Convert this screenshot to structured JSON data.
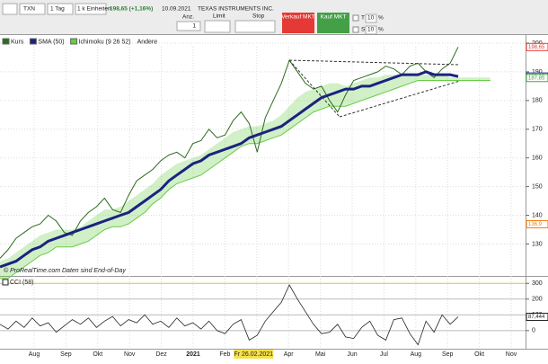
{
  "toolbar": {
    "symbol": "TXN",
    "period": "1 Tag",
    "units": "1 k Einheiten",
    "quote": "198,65 (+1,16%)",
    "date": "10.09.2021",
    "name": "TEXAS INSTRUMENTS INC.",
    "qty_label": "Anz.",
    "qty": "1",
    "limit": "Limit",
    "stop": "Stop",
    "sell": "Verkauf MKT",
    "buy": "Kauf MKT",
    "t_label": "T",
    "t_value": "10",
    "t_unit": "%",
    "s_label": "S",
    "s_value": "10",
    "s_unit": "%"
  },
  "chart_data": [
    {
      "type": "line",
      "legend_extra": "Andere",
      "copyright": "© ProRealTime.com  Daten sind End-of-Day",
      "ylim": [
        119.5,
        202.5
      ],
      "yticks": [
        130,
        140,
        150,
        160,
        170,
        180,
        190,
        200
      ],
      "grid": true,
      "month_labels": [
        "Aug",
        "Sep",
        "Okt",
        "Nov",
        "Dez",
        "2021",
        "Feb",
        null,
        "Apr",
        "Mai",
        "Jun",
        "Jul",
        "Aug",
        "Sep",
        "Okt",
        "Nov"
      ],
      "cursor_label": "Fr 26.02.2021",
      "last_values": [
        {
          "value": 198.65,
          "label": "198,65",
          "color": "#e53935"
        },
        {
          "value": 188.36,
          "label": "188,36",
          "color": "#1a237e"
        },
        {
          "value": 187.85,
          "label": "187,85",
          "color": "#43a047"
        },
        {
          "value": 136.9,
          "label": "136,9",
          "color": "#f57c00"
        }
      ],
      "series": [
        {
          "name": "Kurs",
          "color": "#2e6b1f",
          "values": [
            125,
            128,
            132,
            134,
            136,
            137,
            140,
            138,
            134,
            133,
            138,
            141,
            143,
            146,
            142,
            141,
            147,
            152,
            154,
            156,
            159,
            161,
            162,
            160,
            165,
            166,
            170,
            167,
            168,
            173,
            176,
            172,
            162,
            174,
            180,
            186,
            194,
            190,
            186,
            184,
            185,
            180,
            176,
            182,
            187,
            188,
            189,
            190,
            192,
            191,
            189,
            192,
            193,
            190,
            188,
            191,
            193,
            198.65,
            null,
            null,
            null,
            null
          ]
        },
        {
          "name": "SMA (50)",
          "color": "#1a237e",
          "values": [
            122,
            123,
            124,
            126,
            128,
            129,
            131,
            132,
            133,
            134,
            135,
            136,
            137,
            138,
            139,
            140,
            141,
            143,
            145,
            147,
            149,
            152,
            154,
            156,
            158,
            159,
            161,
            162,
            163,
            164,
            165,
            167,
            168,
            169,
            170,
            171,
            173,
            175,
            177,
            179,
            181,
            182,
            183,
            184,
            184,
            185,
            185,
            186,
            187,
            188,
            189,
            189,
            189,
            190,
            189,
            189,
            189,
            188.36,
            null,
            null,
            null,
            null
          ]
        },
        {
          "name": "Ichimoku (9 26 52)",
          "color": "#66cc44",
          "upper": [
            124,
            125,
            127,
            129,
            131,
            133,
            134,
            135,
            135,
            135,
            136,
            138,
            140,
            142,
            142,
            143,
            145,
            147,
            149,
            151,
            154,
            156,
            158,
            159,
            160,
            161,
            163,
            165,
            167,
            169,
            170,
            171,
            171,
            172,
            173,
            175,
            178,
            181,
            183,
            184,
            185,
            186,
            186,
            185,
            186,
            187,
            188,
            188,
            189,
            189,
            189,
            189,
            189,
            189,
            189,
            189,
            188,
            188,
            188,
            188,
            188,
            188
          ],
          "lower": [
            118,
            118,
            120,
            122,
            124,
            126,
            127,
            129,
            129,
            129,
            130,
            131,
            133,
            135,
            136,
            136,
            137,
            139,
            141,
            144,
            146,
            149,
            151,
            152,
            153,
            154,
            156,
            158,
            160,
            162,
            164,
            165,
            165,
            166,
            167,
            168,
            170,
            172,
            174,
            176,
            177,
            178,
            178,
            178,
            179,
            180,
            181,
            182,
            183,
            184,
            185,
            186,
            187,
            187,
            187,
            187,
            187,
            187,
            187,
            187,
            187,
            187
          ]
        }
      ]
    },
    {
      "type": "line",
      "title": "CCI (58)",
      "ylim": [
        -115,
        330
      ],
      "yticks": [
        0,
        100,
        200,
        300
      ],
      "last_value": {
        "value": 87.444,
        "label": "87,444"
      },
      "series": [
        {
          "name": "CCI",
          "color": "#222222",
          "values": [
            40,
            10,
            60,
            20,
            80,
            30,
            50,
            -10,
            30,
            70,
            40,
            80,
            20,
            60,
            90,
            30,
            70,
            50,
            100,
            40,
            60,
            20,
            80,
            30,
            50,
            10,
            60,
            0,
            -20,
            40,
            70,
            -60,
            -30,
            60,
            120,
            180,
            290,
            200,
            120,
            40,
            -20,
            -10,
            40,
            -40,
            -50,
            20,
            60,
            -30,
            -60,
            70,
            80,
            -20,
            -90,
            60,
            -10,
            100,
            40,
            87.444,
            null,
            null,
            null,
            null
          ]
        }
      ]
    }
  ]
}
